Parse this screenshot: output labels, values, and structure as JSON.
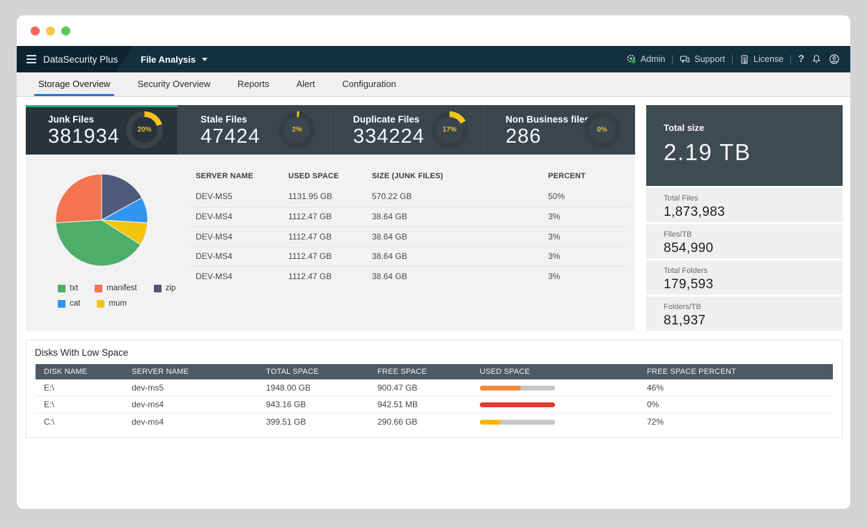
{
  "window": {
    "traffic_lights": [
      "#f4645e",
      "#f6c64d",
      "#57cb59"
    ]
  },
  "navbar": {
    "brand": "DataSecurity Plus",
    "module": "File Analysis",
    "links": [
      {
        "label": "Admin",
        "icon": "gear-admin-icon"
      },
      {
        "label": "Support",
        "icon": "chat-icon"
      },
      {
        "label": "License",
        "icon": "license-icon"
      }
    ],
    "icon_buttons": [
      "help-icon",
      "bell-icon",
      "user-icon"
    ],
    "accent_green": "#2f9e44"
  },
  "tabs": [
    {
      "label": "Storage Overview",
      "active": true
    },
    {
      "label": "Security Overview",
      "active": false
    },
    {
      "label": "Reports",
      "active": false
    },
    {
      "label": "Alert",
      "active": false
    },
    {
      "label": "Configuration",
      "active": false
    }
  ],
  "stat_cards": [
    {
      "label": "Junk Files",
      "value": "381934",
      "percent": 20,
      "active": true
    },
    {
      "label": "Stale Files",
      "value": "47424",
      "percent": 2,
      "active": false
    },
    {
      "label": "Duplicate Files",
      "value": "334224",
      "percent": 17,
      "active": false
    },
    {
      "label": "Non Business files",
      "value": "286",
      "percent": 0,
      "active": false
    }
  ],
  "donut_colors": {
    "arc": "#f7c31c",
    "ring": "#333e46",
    "ring_active": "#39434b",
    "active_topline": "#1fb173"
  },
  "chart_data": {
    "type": "pie",
    "title": "",
    "units": "percent of junk files by extension",
    "slices": [
      {
        "label": "zip",
        "value": 17,
        "color": "#4e5a7c"
      },
      {
        "label": "cat",
        "value": 9,
        "color": "#2f95f1"
      },
      {
        "label": "mum",
        "value": 8,
        "color": "#f2c40e"
      },
      {
        "label": "txt",
        "value": 40,
        "color": "#4cae68"
      },
      {
        "label": "manifest",
        "value": 26,
        "color": "#f3744f"
      }
    ],
    "start_angle_deg": 0,
    "direction": "clockwise",
    "legend_position": "bottom",
    "legend_rows": [
      [
        "txt",
        "manifest",
        "zip"
      ],
      [
        "cat",
        "mum"
      ]
    ]
  },
  "junk_table": {
    "columns": [
      "SERVER NAME",
      "USED SPACE",
      "SIZE (JUNK FILES)",
      "PERCENT"
    ],
    "rows": [
      [
        "DEV-MS5",
        "1131.95 GB",
        "570.22 GB",
        "50%"
      ],
      [
        "DEV-MS4",
        "1112.47 GB",
        "38.64 GB",
        "3%"
      ],
      [
        "DEV-MS4",
        "1112.47 GB",
        "38.64 GB",
        "3%"
      ],
      [
        "DEV-MS4",
        "1112.47 GB",
        "38.64 GB",
        "3%"
      ],
      [
        "DEV-MS4",
        "1112.47 GB",
        "38.64 GB",
        "3%"
      ]
    ]
  },
  "total_size": {
    "label": "Total size",
    "value": "2.19 TB"
  },
  "summary_stats": [
    {
      "label": "Total Files",
      "value": "1,873,983"
    },
    {
      "label": "Files/TB",
      "value": "854,990"
    },
    {
      "label": "Total Folders",
      "value": "179,593"
    },
    {
      "label": "Folders/TB",
      "value": "81,937"
    }
  ],
  "disks_panel": {
    "title": "Disks With Low Space",
    "columns": [
      "DISK NAME",
      "SERVER NAME",
      "TOTAL SPACE",
      "FREE SPACE",
      "USED SPACE",
      "FREE SPACE PERCENT"
    ],
    "bar_track_color": "#c6c6c6",
    "rows": [
      {
        "disk_name": "E:\\",
        "server_name": "dev-ms5",
        "total_space": "1948.00 GB",
        "free_space": "900.47 GB",
        "used_bar_percent": 55,
        "used_bar_color": "#fb8a3c",
        "free_space_percent": "46%"
      },
      {
        "disk_name": "E:\\",
        "server_name": "dev-ms4",
        "total_space": "943.16 GB",
        "free_space": "942.51 MB",
        "used_bar_percent": 100,
        "used_bar_color": "#e33a2c",
        "free_space_percent": "0%"
      },
      {
        "disk_name": "C:\\",
        "server_name": "dev-ms4",
        "total_space": "399.51 GB",
        "free_space": "290.66 GB",
        "used_bar_percent": 28,
        "used_bar_color": "#f6b400",
        "free_space_percent": "72%"
      }
    ]
  }
}
